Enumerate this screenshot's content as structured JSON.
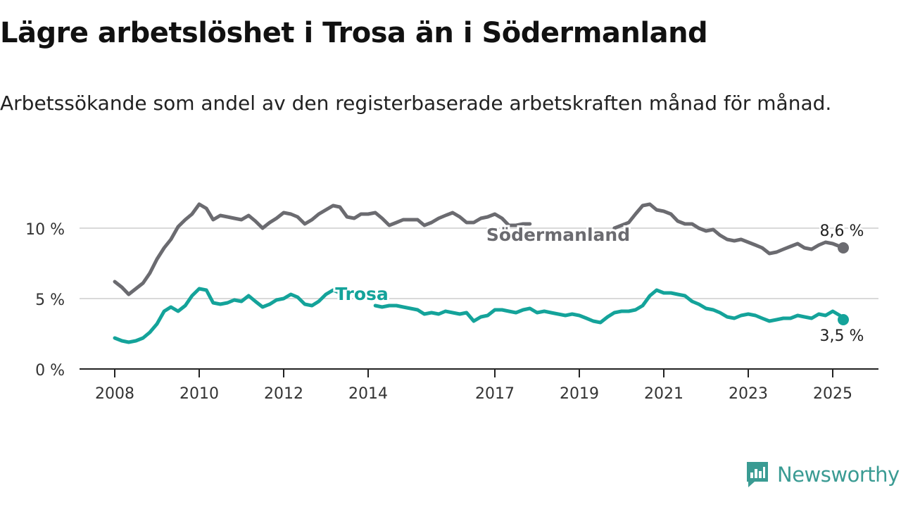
{
  "title": "Lägre arbetslöshet i Trosa än i Södermanland",
  "subtitle": "Arbetssökande som andel av den registerbaserade arbetskraften månad för månad.",
  "brand": {
    "name": "Newsworthy",
    "color": "#3a9b93"
  },
  "chart_data": {
    "type": "line",
    "title": "Lägre arbetslöshet i Trosa än i Södermanland",
    "subtitle": "Arbetssökande som andel av den registerbaserade arbetskraften månad för månad.",
    "ylim": [
      0,
      12
    ],
    "xlim": [
      2008,
      2026
    ],
    "y_ticks": [
      0,
      5,
      10
    ],
    "y_tick_labels": [
      "0 %",
      "5 %",
      "10 %"
    ],
    "x_ticks": [
      2008,
      2010,
      2012,
      2014,
      2017,
      2019,
      2021,
      2023,
      2025
    ],
    "x_tick_labels": [
      "2008",
      "2010",
      "2012",
      "2014",
      "2017",
      "2019",
      "2021",
      "2023",
      "2025"
    ],
    "grid": true,
    "series": [
      {
        "name": "Södermanland",
        "color": "#6b6b70",
        "end_label": "8,6 %",
        "points": [
          [
            2008.0,
            6.2
          ],
          [
            2008.17,
            5.8
          ],
          [
            2008.33,
            5.3
          ],
          [
            2008.5,
            5.7
          ],
          [
            2008.67,
            6.1
          ],
          [
            2008.83,
            6.8
          ],
          [
            2009.0,
            7.8
          ],
          [
            2009.17,
            8.6
          ],
          [
            2009.33,
            9.2
          ],
          [
            2009.5,
            10.1
          ],
          [
            2009.67,
            10.6
          ],
          [
            2009.83,
            11.0
          ],
          [
            2010.0,
            11.7
          ],
          [
            2010.17,
            11.4
          ],
          [
            2010.33,
            10.6
          ],
          [
            2010.5,
            10.9
          ],
          [
            2010.67,
            10.8
          ],
          [
            2010.83,
            10.7
          ],
          [
            2011.0,
            10.6
          ],
          [
            2011.17,
            10.9
          ],
          [
            2011.33,
            10.5
          ],
          [
            2011.5,
            10.0
          ],
          [
            2011.67,
            10.4
          ],
          [
            2011.83,
            10.7
          ],
          [
            2012.0,
            11.1
          ],
          [
            2012.17,
            11.0
          ],
          [
            2012.33,
            10.8
          ],
          [
            2012.5,
            10.3
          ],
          [
            2012.67,
            10.6
          ],
          [
            2012.83,
            11.0
          ],
          [
            2013.0,
            11.3
          ],
          [
            2013.17,
            11.6
          ],
          [
            2013.33,
            11.5
          ],
          [
            2013.5,
            10.8
          ],
          [
            2013.67,
            10.7
          ],
          [
            2013.83,
            11.0
          ],
          [
            2014.0,
            11.0
          ],
          [
            2014.17,
            11.1
          ],
          [
            2014.33,
            10.7
          ],
          [
            2014.5,
            10.2
          ],
          [
            2014.67,
            10.4
          ],
          [
            2014.83,
            10.6
          ],
          [
            2015.0,
            10.6
          ],
          [
            2015.17,
            10.6
          ],
          [
            2015.33,
            10.2
          ],
          [
            2015.5,
            10.4
          ],
          [
            2015.67,
            10.7
          ],
          [
            2015.83,
            10.9
          ],
          [
            2016.0,
            11.1
          ],
          [
            2016.17,
            10.8
          ],
          [
            2016.33,
            10.4
          ],
          [
            2016.5,
            10.4
          ],
          [
            2016.67,
            10.7
          ],
          [
            2016.83,
            10.8
          ],
          [
            2017.0,
            11.0
          ],
          [
            2017.17,
            10.7
          ],
          [
            2017.33,
            10.2
          ],
          [
            2017.5,
            10.2
          ],
          [
            2017.67,
            10.3
          ],
          [
            2017.83,
            10.3
          ],
          [
            2019.83,
            10.0
          ],
          [
            2020.0,
            10.2
          ],
          [
            2020.17,
            10.4
          ],
          [
            2020.33,
            11.0
          ],
          [
            2020.5,
            11.6
          ],
          [
            2020.67,
            11.7
          ],
          [
            2020.83,
            11.3
          ],
          [
            2021.0,
            11.2
          ],
          [
            2021.17,
            11.0
          ],
          [
            2021.33,
            10.5
          ],
          [
            2021.5,
            10.3
          ],
          [
            2021.67,
            10.3
          ],
          [
            2021.83,
            10.0
          ],
          [
            2022.0,
            9.8
          ],
          [
            2022.17,
            9.9
          ],
          [
            2022.33,
            9.5
          ],
          [
            2022.5,
            9.2
          ],
          [
            2022.67,
            9.1
          ],
          [
            2022.83,
            9.2
          ],
          [
            2023.0,
            9.0
          ],
          [
            2023.17,
            8.8
          ],
          [
            2023.33,
            8.6
          ],
          [
            2023.5,
            8.2
          ],
          [
            2023.67,
            8.3
          ],
          [
            2023.83,
            8.5
          ],
          [
            2024.0,
            8.7
          ],
          [
            2024.17,
            8.9
          ],
          [
            2024.33,
            8.6
          ],
          [
            2024.5,
            8.5
          ],
          [
            2024.67,
            8.8
          ],
          [
            2024.83,
            9.0
          ],
          [
            2025.0,
            8.9
          ],
          [
            2025.17,
            8.7
          ],
          [
            2025.25,
            8.6
          ]
        ]
      },
      {
        "name": "Trosa",
        "color": "#14a39a",
        "end_label": "3,5 %",
        "points": [
          [
            2008.0,
            2.2
          ],
          [
            2008.17,
            2.0
          ],
          [
            2008.33,
            1.9
          ],
          [
            2008.5,
            2.0
          ],
          [
            2008.67,
            2.2
          ],
          [
            2008.83,
            2.6
          ],
          [
            2009.0,
            3.2
          ],
          [
            2009.17,
            4.1
          ],
          [
            2009.33,
            4.4
          ],
          [
            2009.5,
            4.1
          ],
          [
            2009.67,
            4.5
          ],
          [
            2009.83,
            5.2
          ],
          [
            2010.0,
            5.7
          ],
          [
            2010.17,
            5.6
          ],
          [
            2010.33,
            4.7
          ],
          [
            2010.5,
            4.6
          ],
          [
            2010.67,
            4.7
          ],
          [
            2010.83,
            4.9
          ],
          [
            2011.0,
            4.8
          ],
          [
            2011.17,
            5.2
          ],
          [
            2011.33,
            4.8
          ],
          [
            2011.5,
            4.4
          ],
          [
            2011.67,
            4.6
          ],
          [
            2011.83,
            4.9
          ],
          [
            2012.0,
            5.0
          ],
          [
            2012.17,
            5.3
          ],
          [
            2012.33,
            5.1
          ],
          [
            2012.5,
            4.6
          ],
          [
            2012.67,
            4.5
          ],
          [
            2012.83,
            4.8
          ],
          [
            2013.0,
            5.3
          ],
          [
            2013.17,
            5.6
          ],
          [
            2013.33,
            5.4
          ],
          [
            2014.17,
            4.5
          ],
          [
            2014.33,
            4.4
          ],
          [
            2014.5,
            4.5
          ],
          [
            2014.67,
            4.5
          ],
          [
            2014.83,
            4.4
          ],
          [
            2015.0,
            4.3
          ],
          [
            2015.17,
            4.2
          ],
          [
            2015.33,
            3.9
          ],
          [
            2015.5,
            4.0
          ],
          [
            2015.67,
            3.9
          ],
          [
            2015.83,
            4.1
          ],
          [
            2016.0,
            4.0
          ],
          [
            2016.17,
            3.9
          ],
          [
            2016.33,
            4.0
          ],
          [
            2016.5,
            3.4
          ],
          [
            2016.67,
            3.7
          ],
          [
            2016.83,
            3.8
          ],
          [
            2017.0,
            4.2
          ],
          [
            2017.17,
            4.2
          ],
          [
            2017.33,
            4.1
          ],
          [
            2017.5,
            4.0
          ],
          [
            2017.67,
            4.2
          ],
          [
            2017.83,
            4.3
          ],
          [
            2018.0,
            4.0
          ],
          [
            2018.17,
            4.1
          ],
          [
            2018.33,
            4.0
          ],
          [
            2018.5,
            3.9
          ],
          [
            2018.67,
            3.8
          ],
          [
            2018.83,
            3.9
          ],
          [
            2019.0,
            3.8
          ],
          [
            2019.17,
            3.6
          ],
          [
            2019.33,
            3.4
          ],
          [
            2019.5,
            3.3
          ],
          [
            2019.67,
            3.7
          ],
          [
            2019.83,
            4.0
          ],
          [
            2020.0,
            4.1
          ],
          [
            2020.17,
            4.1
          ],
          [
            2020.33,
            4.2
          ],
          [
            2020.5,
            4.5
          ],
          [
            2020.67,
            5.2
          ],
          [
            2020.83,
            5.6
          ],
          [
            2021.0,
            5.4
          ],
          [
            2021.17,
            5.4
          ],
          [
            2021.33,
            5.3
          ],
          [
            2021.5,
            5.2
          ],
          [
            2021.67,
            4.8
          ],
          [
            2021.83,
            4.6
          ],
          [
            2022.0,
            4.3
          ],
          [
            2022.17,
            4.2
          ],
          [
            2022.33,
            4.0
          ],
          [
            2022.5,
            3.7
          ],
          [
            2022.67,
            3.6
          ],
          [
            2022.83,
            3.8
          ],
          [
            2023.0,
            3.9
          ],
          [
            2023.17,
            3.8
          ],
          [
            2023.33,
            3.6
          ],
          [
            2023.5,
            3.4
          ],
          [
            2023.67,
            3.5
          ],
          [
            2023.83,
            3.6
          ],
          [
            2024.0,
            3.6
          ],
          [
            2024.17,
            3.8
          ],
          [
            2024.33,
            3.7
          ],
          [
            2024.5,
            3.6
          ],
          [
            2024.67,
            3.9
          ],
          [
            2024.83,
            3.8
          ],
          [
            2025.0,
            4.1
          ],
          [
            2025.17,
            3.8
          ],
          [
            2025.25,
            3.5
          ]
        ]
      }
    ],
    "annotations": [
      {
        "text": "Södermanland",
        "series": "Södermanland",
        "x": 2018.5,
        "y": 9.5
      },
      {
        "text": "Trosa",
        "series": "Trosa",
        "x": 2013.85,
        "y": 5.3
      }
    ]
  }
}
